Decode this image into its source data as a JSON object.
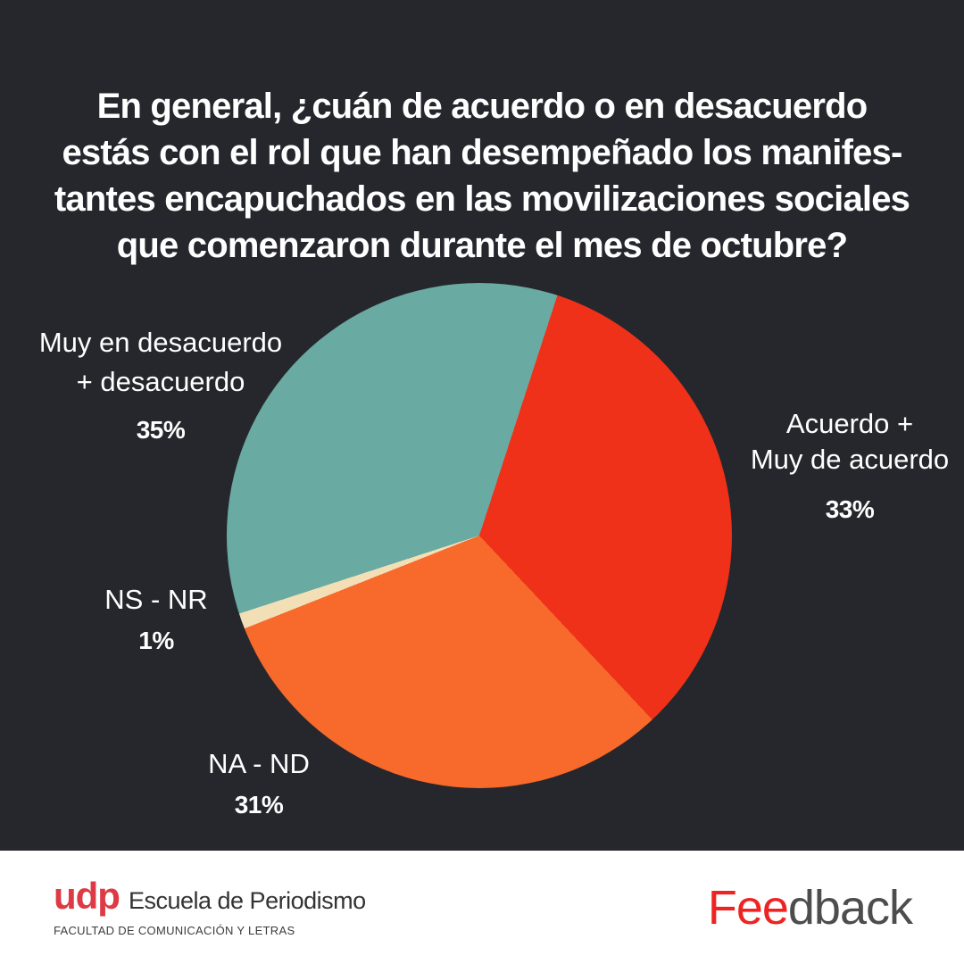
{
  "title": {
    "lines": [
      "En general, ¿cuán de acuerdo o en desacuerdo",
      "estás con el rol que han desempeñado los manifes-",
      "tantes encapuchados en las movilizaciones sociales",
      "que comenzaron durante el mes de octubre?"
    ],
    "full": "En general, ¿cuán de acuerdo o en desacuerdo estás con el rol que han desempeñado los manifestantes encapuchados en las movilizaciones sociales que comenzaron durante el mes de octubre?"
  },
  "chart_data": {
    "type": "pie",
    "title": "En general, ¿cuán de acuerdo o en desacuerdo estás con el rol que han desempeñado los manifestantes encapuchados en las movilizaciones sociales que comenzaron durante el mes de octubre?",
    "start_angle_deg": 18,
    "direction": "clockwise",
    "value_suffix": "%",
    "slices": [
      {
        "label": "Acuerdo + Muy de acuerdo",
        "value": 33,
        "color": "#ef3119"
      },
      {
        "label": "NA - ND",
        "value": 31,
        "color": "#f76a2c"
      },
      {
        "label": "NS - NR",
        "value": 1,
        "color": "#f2dfb6"
      },
      {
        "label": "Muy en desacuerdo + desacuerdo",
        "value": 35,
        "color": "#69aaa2"
      }
    ],
    "legend_position": "labels-around-pie",
    "grid": false
  },
  "labels": {
    "desacuerdo": {
      "line1": "Muy en desacuerdo",
      "line2": "+ desacuerdo",
      "value": "35%"
    },
    "acuerdo": {
      "line1": "Acuerdo +",
      "line2": "Muy de acuerdo",
      "value": "33%"
    },
    "nsnr": {
      "line1": "NS - NR",
      "value": "1%"
    },
    "nand": {
      "line1": "NA - ND",
      "value": "31%"
    }
  },
  "footer": {
    "udp": {
      "acronym": "udp",
      "school": "Escuela de Periodismo",
      "faculty": "FACULTAD DE COMUNICACIÓN Y LETRAS"
    },
    "brand": {
      "prefix": "Fee",
      "suffix": "dback"
    }
  },
  "colors": {
    "background": "#26272d",
    "title_text": "#ffffff",
    "slice_red": "#ef3119",
    "slice_orange": "#f76a2c",
    "slice_cream": "#f2dfb6",
    "slice_teal": "#69aaa2",
    "udp_red": "#dd3a45",
    "feedback_red": "#ee2423",
    "footer_text": "#333333"
  }
}
